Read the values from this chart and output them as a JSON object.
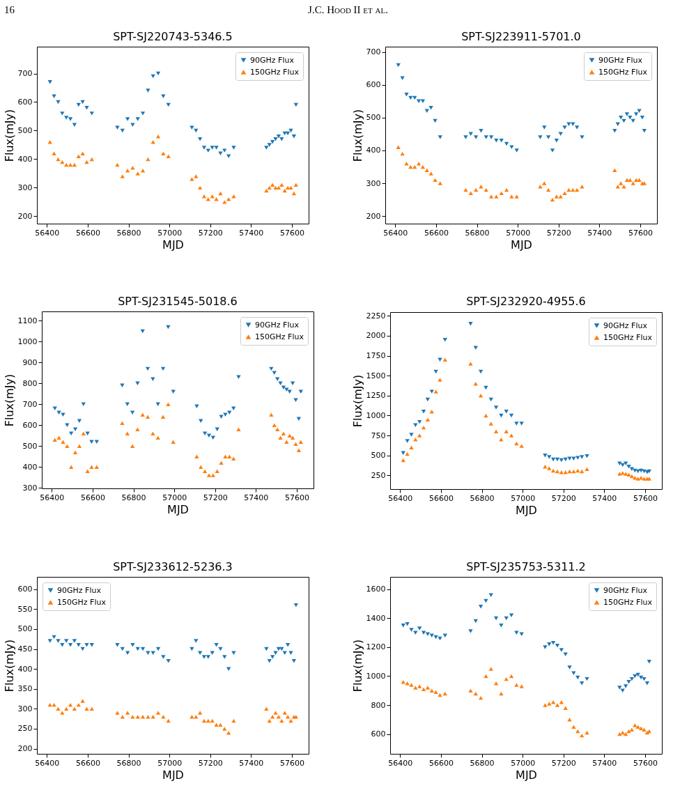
{
  "chart_data": [
    {
      "type": "scatter",
      "title": "SPT-SJ220743-5346.5",
      "xlabel": "MJD",
      "ylabel": "Flux(mJy)",
      "annotations": [
        "16",
        "J.C. Hood II et al."
      ],
      "legend": "top right",
      "grid": false,
      "xlim": [
        56351,
        57682
      ],
      "ylim": [
        174,
        794
      ],
      "xticks": [
        56400,
        56600,
        56800,
        57000,
        57200,
        57400,
        57600
      ],
      "yticks": [
        200,
        300,
        400,
        500,
        600,
        700
      ],
      "x": [
        56415,
        56435,
        56455,
        56475,
        56495,
        56515,
        56535,
        56555,
        56575,
        56595,
        56620,
        56745,
        56770,
        56795,
        56820,
        56845,
        56870,
        56895,
        56920,
        56945,
        56970,
        56995,
        57110,
        57130,
        57150,
        57170,
        57190,
        57210,
        57230,
        57250,
        57270,
        57290,
        57315,
        57475,
        57490,
        57505,
        57520,
        57535,
        57550,
        57565,
        57580,
        57595,
        57610,
        57620
      ],
      "series": [
        {
          "name": "90GHz Flux",
          "color": "#1f77b4",
          "marker": "triangle",
          "values": [
            670,
            620,
            600,
            560,
            545,
            540,
            520,
            590,
            600,
            580,
            560,
            510,
            500,
            540,
            520,
            540,
            560,
            640,
            690,
            700,
            620,
            590,
            510,
            500,
            470,
            440,
            430,
            440,
            440,
            420,
            430,
            410,
            440,
            440,
            450,
            460,
            470,
            480,
            470,
            490,
            490,
            500,
            480,
            590
          ]
        },
        {
          "name": "150GHz Flux",
          "color": "#ff7f0e",
          "marker": "triangle",
          "values": [
            460,
            420,
            400,
            390,
            380,
            380,
            380,
            410,
            420,
            390,
            400,
            380,
            340,
            360,
            370,
            350,
            360,
            400,
            460,
            480,
            420,
            410,
            330,
            340,
            300,
            270,
            260,
            270,
            260,
            280,
            250,
            260,
            270,
            290,
            300,
            310,
            300,
            300,
            310,
            290,
            300,
            300,
            280,
            310
          ]
        }
      ]
    },
    {
      "type": "scatter",
      "title": "SPT-SJ223911-5701.0",
      "xlabel": "MJD",
      "ylabel": "Flux(mJy)",
      "legend": "top right",
      "grid": false,
      "xlim": [
        56351,
        57682
      ],
      "ylim": [
        177,
        716
      ],
      "xticks": [
        56400,
        56600,
        56800,
        57000,
        57200,
        57400,
        57600
      ],
      "yticks": [
        200,
        300,
        400,
        500,
        600,
        700
      ],
      "x": [
        56415,
        56435,
        56455,
        56475,
        56495,
        56515,
        56535,
        56555,
        56575,
        56595,
        56620,
        56745,
        56770,
        56795,
        56820,
        56845,
        56870,
        56895,
        56920,
        56945,
        56970,
        56995,
        57110,
        57130,
        57150,
        57170,
        57190,
        57210,
        57230,
        57250,
        57270,
        57290,
        57315,
        57475,
        57490,
        57505,
        57520,
        57535,
        57550,
        57565,
        57580,
        57595,
        57610,
        57620
      ],
      "series": [
        {
          "name": "90GHz Flux",
          "color": "#1f77b4",
          "marker": "triangle",
          "values": [
            660,
            620,
            570,
            560,
            560,
            550,
            550,
            520,
            530,
            490,
            440,
            440,
            450,
            440,
            460,
            440,
            440,
            430,
            430,
            420,
            410,
            400,
            440,
            470,
            440,
            400,
            430,
            450,
            470,
            480,
            480,
            470,
            440,
            460,
            480,
            500,
            490,
            510,
            500,
            490,
            510,
            520,
            500,
            460
          ]
        },
        {
          "name": "150GHz Flux",
          "color": "#ff7f0e",
          "marker": "triangle",
          "values": [
            410,
            390,
            360,
            350,
            350,
            360,
            350,
            340,
            330,
            310,
            300,
            280,
            270,
            280,
            290,
            280,
            260,
            260,
            270,
            280,
            260,
            260,
            290,
            300,
            280,
            250,
            260,
            260,
            270,
            280,
            280,
            280,
            290,
            340,
            290,
            300,
            290,
            310,
            310,
            300,
            310,
            310,
            300,
            300
          ]
        }
      ]
    },
    {
      "type": "scatter",
      "title": "SPT-SJ231545-5018.6",
      "xlabel": "MJD",
      "ylabel": "Flux(mJy)",
      "legend": "top right",
      "grid": false,
      "xlim": [
        56351,
        57682
      ],
      "ylim": [
        297,
        1145
      ],
      "xticks": [
        56400,
        56600,
        56800,
        57000,
        57200,
        57400,
        57600
      ],
      "yticks": [
        300,
        400,
        500,
        600,
        700,
        800,
        900,
        1000,
        1100
      ],
      "x": [
        56415,
        56435,
        56455,
        56475,
        56495,
        56515,
        56535,
        56555,
        56575,
        56595,
        56620,
        56745,
        56770,
        56795,
        56820,
        56845,
        56870,
        56895,
        56920,
        56945,
        56970,
        56995,
        57110,
        57130,
        57150,
        57170,
        57190,
        57210,
        57230,
        57250,
        57270,
        57290,
        57315,
        57475,
        57490,
        57505,
        57520,
        57535,
        57550,
        57565,
        57580,
        57595,
        57610,
        57620
      ],
      "series": [
        {
          "name": "90GHz Flux",
          "color": "#1f77b4",
          "marker": "triangle",
          "values": [
            680,
            660,
            650,
            600,
            560,
            580,
            620,
            700,
            560,
            520,
            520,
            790,
            700,
            660,
            800,
            1050,
            870,
            820,
            700,
            870,
            1070,
            760,
            690,
            620,
            560,
            550,
            540,
            580,
            640,
            650,
            660,
            680,
            830,
            870,
            850,
            820,
            800,
            780,
            770,
            760,
            800,
            720,
            630,
            760
          ]
        },
        {
          "name": "150GHz Flux",
          "color": "#ff7f0e",
          "marker": "triangle",
          "values": [
            530,
            540,
            520,
            500,
            400,
            470,
            500,
            560,
            380,
            400,
            400,
            610,
            560,
            500,
            580,
            650,
            640,
            560,
            540,
            640,
            700,
            520,
            450,
            400,
            380,
            360,
            360,
            380,
            420,
            450,
            450,
            440,
            580,
            650,
            600,
            580,
            540,
            560,
            520,
            550,
            540,
            510,
            480,
            520
          ]
        }
      ]
    },
    {
      "type": "scatter",
      "title": "SPT-SJ232920-4955.6",
      "xlabel": "MJD",
      "ylabel": "Flux(mJy)",
      "legend": "top right",
      "grid": false,
      "xlim": [
        56351,
        57682
      ],
      "ylim": [
        78,
        2297
      ],
      "xticks": [
        56400,
        56600,
        56800,
        57000,
        57200,
        57400,
        57600
      ],
      "yticks": [
        250,
        500,
        750,
        1000,
        1250,
        1500,
        1750,
        2000,
        2250
      ],
      "x": [
        56415,
        56435,
        56455,
        56475,
        56495,
        56515,
        56535,
        56555,
        56575,
        56595,
        56620,
        56745,
        56770,
        56795,
        56820,
        56845,
        56870,
        56895,
        56920,
        56945,
        56970,
        56995,
        57110,
        57130,
        57150,
        57170,
        57190,
        57210,
        57230,
        57250,
        57270,
        57290,
        57315,
        57475,
        57490,
        57505,
        57520,
        57535,
        57550,
        57565,
        57580,
        57595,
        57610,
        57620
      ],
      "series": [
        {
          "name": "90GHz Flux",
          "color": "#1f77b4",
          "marker": "triangle",
          "values": [
            530,
            680,
            760,
            880,
            920,
            1050,
            1200,
            1300,
            1550,
            1700,
            1950,
            2150,
            1850,
            1550,
            1350,
            1200,
            1100,
            1000,
            1050,
            1000,
            900,
            900,
            500,
            480,
            450,
            450,
            440,
            450,
            460,
            460,
            470,
            480,
            490,
            400,
            380,
            400,
            360,
            330,
            310,
            300,
            310,
            300,
            290,
            300
          ]
        },
        {
          "name": "150GHz Flux",
          "color": "#ff7f0e",
          "marker": "triangle",
          "values": [
            440,
            520,
            600,
            700,
            750,
            850,
            950,
            1050,
            1300,
            1450,
            1700,
            1650,
            1400,
            1250,
            1000,
            900,
            800,
            700,
            800,
            750,
            650,
            620,
            360,
            340,
            310,
            300,
            290,
            290,
            300,
            300,
            310,
            300,
            330,
            270,
            280,
            270,
            260,
            240,
            220,
            210,
            220,
            210,
            210,
            210
          ]
        }
      ]
    },
    {
      "type": "scatter",
      "title": "SPT-SJ233612-5236.3",
      "xlabel": "MJD",
      "ylabel": "Flux(mJy)",
      "legend": "top left",
      "grid": false,
      "xlim": [
        56351,
        57682
      ],
      "ylim": [
        187,
        631
      ],
      "xticks": [
        56400,
        56600,
        56800,
        57000,
        57200,
        57400,
        57600
      ],
      "yticks": [
        200,
        250,
        300,
        350,
        400,
        450,
        500,
        550,
        600
      ],
      "x": [
        56415,
        56435,
        56455,
        56475,
        56495,
        56515,
        56535,
        56555,
        56575,
        56595,
        56620,
        56745,
        56770,
        56795,
        56820,
        56845,
        56870,
        56895,
        56920,
        56945,
        56970,
        56995,
        57110,
        57130,
        57150,
        57170,
        57190,
        57210,
        57230,
        57250,
        57270,
        57290,
        57315,
        57475,
        57490,
        57505,
        57520,
        57535,
        57550,
        57565,
        57580,
        57595,
        57610,
        57620
      ],
      "series": [
        {
          "name": "90GHz Flux",
          "color": "#1f77b4",
          "marker": "triangle",
          "values": [
            470,
            480,
            470,
            460,
            470,
            460,
            470,
            460,
            450,
            460,
            460,
            460,
            450,
            440,
            460,
            450,
            450,
            440,
            440,
            450,
            430,
            420,
            450,
            470,
            440,
            430,
            430,
            440,
            460,
            450,
            430,
            400,
            440,
            450,
            420,
            430,
            440,
            450,
            450,
            440,
            460,
            440,
            420,
            560
          ]
        },
        {
          "name": "150GHz Flux",
          "color": "#ff7f0e",
          "marker": "triangle",
          "values": [
            310,
            310,
            300,
            290,
            300,
            310,
            300,
            310,
            320,
            300,
            300,
            290,
            280,
            290,
            280,
            280,
            280,
            280,
            280,
            290,
            280,
            270,
            280,
            280,
            290,
            270,
            270,
            270,
            260,
            260,
            250,
            240,
            270,
            300,
            270,
            280,
            290,
            280,
            270,
            290,
            280,
            270,
            280,
            280
          ]
        }
      ]
    },
    {
      "type": "scatter",
      "title": "SPT-SJ235753-5311.2",
      "xlabel": "MJD",
      "ylabel": "Flux(mJy)",
      "legend": "top right",
      "grid": false,
      "xlim": [
        56351,
        57682
      ],
      "ylim": [
        463,
        1686
      ],
      "xticks": [
        56400,
        56600,
        56800,
        57000,
        57200,
        57400,
        57600
      ],
      "yticks": [
        600,
        800,
        1000,
        1200,
        1400,
        1600
      ],
      "x": [
        56415,
        56435,
        56455,
        56475,
        56495,
        56515,
        56535,
        56555,
        56575,
        56595,
        56620,
        56745,
        56770,
        56795,
        56820,
        56845,
        56870,
        56895,
        56920,
        56945,
        56970,
        56995,
        57110,
        57130,
        57150,
        57170,
        57190,
        57210,
        57230,
        57250,
        57270,
        57290,
        57315,
        57475,
        57490,
        57505,
        57520,
        57535,
        57550,
        57565,
        57580,
        57595,
        57610,
        57620
      ],
      "series": [
        {
          "name": "90GHz Flux",
          "color": "#1f77b4",
          "marker": "triangle",
          "values": [
            1350,
            1360,
            1320,
            1300,
            1330,
            1300,
            1290,
            1280,
            1270,
            1260,
            1280,
            1310,
            1380,
            1480,
            1520,
            1560,
            1400,
            1350,
            1400,
            1420,
            1300,
            1290,
            1200,
            1220,
            1230,
            1210,
            1180,
            1150,
            1060,
            1020,
            990,
            950,
            980,
            920,
            900,
            930,
            960,
            980,
            1000,
            1010,
            990,
            980,
            950,
            1100
          ]
        },
        {
          "name": "150GHz Flux",
          "color": "#ff7f0e",
          "marker": "triangle",
          "values": [
            960,
            950,
            940,
            920,
            930,
            910,
            920,
            900,
            890,
            870,
            880,
            900,
            880,
            850,
            1000,
            1050,
            950,
            880,
            980,
            1000,
            940,
            930,
            800,
            810,
            820,
            800,
            820,
            780,
            700,
            650,
            620,
            590,
            610,
            600,
            610,
            600,
            620,
            630,
            660,
            650,
            640,
            630,
            610,
            620
          ]
        }
      ]
    }
  ]
}
